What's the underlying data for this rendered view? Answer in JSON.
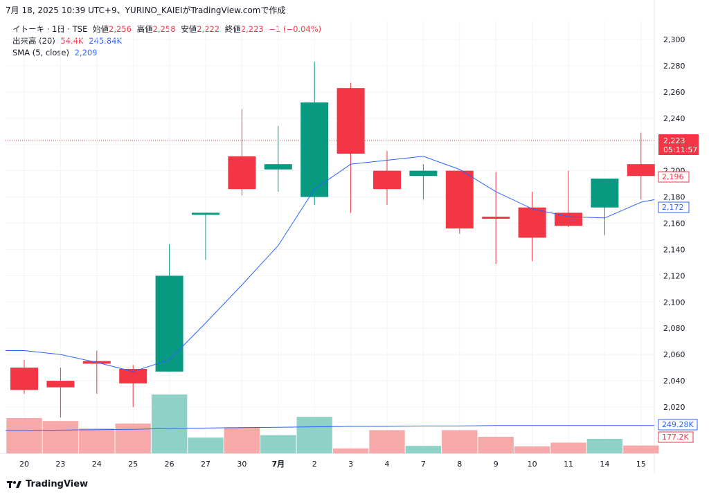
{
  "header": {
    "caption": "7月 18, 2025 10:39 UTC+9、YURINO_KAIEIがTradingView.comで作成"
  },
  "legend": {
    "symbol": "イトーキ · 1日 · TSE",
    "open_label": "始値",
    "open_value": "2,256",
    "high_label": "高値",
    "high_value": "2,258",
    "low_label": "安値",
    "low_value": "2,222",
    "close_label": "終値",
    "close_value": "2,223",
    "change": "−1 (−0.04%)",
    "volume_label": "出来高 (20)",
    "volume_value": "54.4K",
    "volume_ma_value": "245.84K",
    "sma_label": "SMA (5, close)",
    "sma_value": "2,209"
  },
  "price_badges": {
    "last_price": "2,223",
    "countdown": "05:11:57",
    "open_marker": "2,196",
    "sma_marker": "2,172",
    "volume_ma_marker": "249.28K",
    "volume_marker": "177.2K"
  },
  "footer": {
    "brand": "TradingView"
  },
  "colors": {
    "up": "#089981",
    "down": "#f23645",
    "up_volume": "#8fd1c6",
    "down_volume": "#f7a9a9",
    "sma": "#2962ff"
  },
  "chart_data": {
    "type": "candlestick",
    "categories": [
      "20",
      "23",
      "24",
      "25",
      "26",
      "27",
      "30",
      "7月",
      "2",
      "3",
      "4",
      "7",
      "8",
      "9",
      "10",
      "11",
      "14",
      "15"
    ],
    "open": [
      2050,
      2040,
      2055,
      2049,
      2047,
      2167,
      2211,
      2201,
      2180,
      2263,
      2200,
      2196,
      2200,
      2165,
      2172,
      2168,
      2172,
      2205
    ],
    "high": [
      2056,
      2050,
      2063,
      2052,
      2144,
      2168,
      2247,
      2234,
      2283,
      2267,
      2215,
      2205,
      2200,
      2199,
      2184,
      2200,
      2194,
      2229
    ],
    "low": [
      2030,
      2012,
      2030,
      2020,
      2047,
      2132,
      2181,
      2184,
      2174,
      2168,
      2174,
      2178,
      2152,
      2129,
      2131,
      2157,
      2151,
      2178
    ],
    "close": [
      2033,
      2035,
      2053,
      2038,
      2120,
      2168,
      2186,
      2205,
      2252,
      2213,
      2186,
      2200,
      2156,
      2164,
      2149,
      2158,
      2194,
      2196
    ],
    "sma": [
      2063,
      2060,
      2054,
      2047,
      2056,
      2084,
      2113,
      2143,
      2186,
      2205,
      2208,
      2211,
      2201,
      2184,
      2171,
      2165,
      2164,
      2176
    ],
    "volume_relative": [
      0.85,
      0.78,
      0.6,
      0.72,
      1.42,
      0.38,
      0.63,
      0.44,
      0.88,
      0.12,
      0.56,
      0.18,
      0.56,
      0.4,
      0.17,
      0.26,
      0.35,
      0.19
    ],
    "volume_scale": {
      "zero": 655,
      "unit": 60
    },
    "ylim": [
      2000,
      2305
    ],
    "yticks": [
      "2,020",
      "2,040",
      "2,060",
      "2,080",
      "2,100",
      "2,120",
      "2,140",
      "2,160",
      "2,180",
      "2,200",
      "2,220",
      "2,240",
      "2,260",
      "2,280",
      "2,300"
    ],
    "ytick_values": [
      2020,
      2040,
      2060,
      2080,
      2100,
      2120,
      2140,
      2160,
      2180,
      2200,
      2220,
      2240,
      2260,
      2280,
      2300
    ],
    "last_price_line": 2223,
    "volume_ma_relative": [
      0.55,
      0.56,
      0.57,
      0.58,
      0.6,
      0.61,
      0.62,
      0.63,
      0.64,
      0.65,
      0.65,
      0.66,
      0.66,
      0.67,
      0.67,
      0.67,
      0.67,
      0.67
    ]
  }
}
